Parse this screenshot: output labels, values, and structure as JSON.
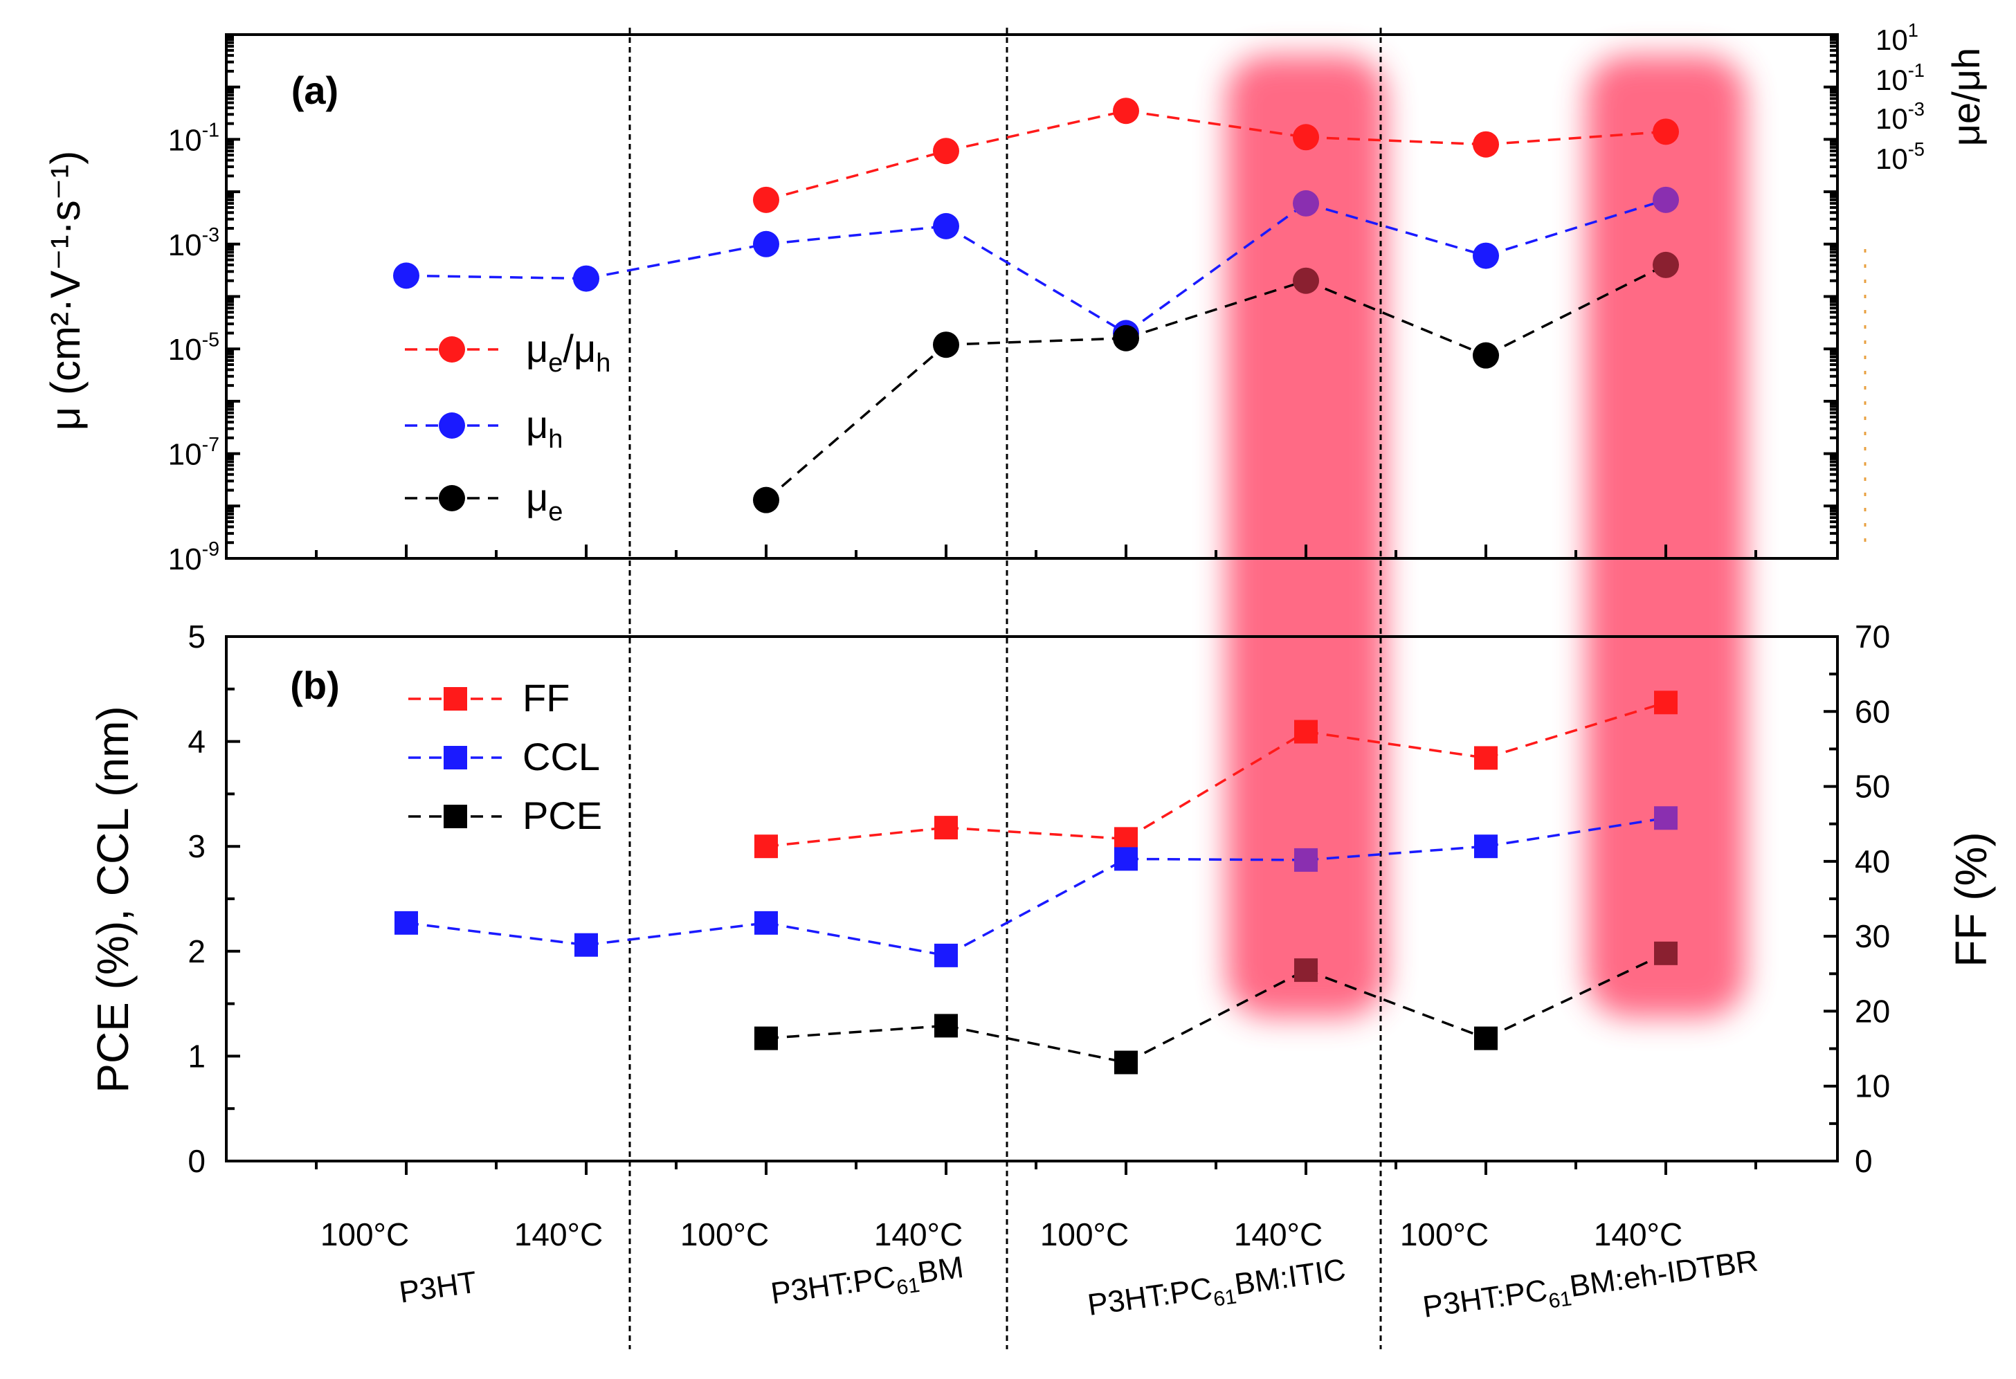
{
  "chart_data": [
    {
      "id": "a",
      "panel_label": "(a)",
      "type": "line",
      "ylabel": "μ (cm²·V⁻¹·s⁻¹)",
      "y2label": "μe/μh",
      "yscale": "log",
      "ylim": [
        1e-09,
        10
      ],
      "y_ticks": [
        {
          "v": 0.1,
          "m": "10",
          "e": "-1"
        },
        {
          "v": 0.001,
          "m": "10",
          "e": "-3"
        },
        {
          "v": 1e-05,
          "m": "10",
          "e": "-5"
        },
        {
          "v": 1e-07,
          "m": "10",
          "e": "-7"
        },
        {
          "v": 1e-09,
          "m": "10",
          "e": "-9"
        }
      ],
      "y2_ticks": [
        {
          "m": "10",
          "e": "1"
        },
        {
          "m": "10",
          "e": "-1"
        },
        {
          "m": "10",
          "e": "-3"
        },
        {
          "m": "10",
          "e": "-5"
        }
      ],
      "series": [
        {
          "name": "μe/μh",
          "lg_main": "μ",
          "lg_sub1": "e",
          "lg_mid": "/μ",
          "lg_sub2": "h",
          "color": "#ff1a1a",
          "marker": "circle",
          "values": [
            null,
            null,
            0.007,
            0.06,
            0.35,
            0.11,
            0.08,
            0.14
          ]
        },
        {
          "name": "μh",
          "lg_main": "μ",
          "lg_sub1": "h",
          "lg_mid": "",
          "lg_sub2": "",
          "color": "#1a1aff",
          "marker": "circle",
          "values": [
            0.00025,
            0.00022,
            0.001,
            0.0022,
            2e-05,
            0.006,
            0.0006,
            0.007
          ]
        },
        {
          "name": "μe",
          "lg_main": "μ",
          "lg_sub1": "e",
          "lg_mid": "",
          "lg_sub2": "",
          "color": "#000000",
          "marker": "circle",
          "values": [
            null,
            null,
            1.3e-08,
            1.2e-05,
            1.6e-05,
            0.0002,
            7.5e-06,
            0.0004
          ]
        }
      ]
    },
    {
      "id": "b",
      "panel_label": "(b)",
      "type": "line",
      "ylabel": "PCE (%), CCL (nm)",
      "y2label": "FF (%)",
      "ylim": [
        0,
        5
      ],
      "y2lim": [
        0,
        70
      ],
      "y_ticks": [
        "0",
        "1",
        "2",
        "3",
        "4",
        "5"
      ],
      "y2_ticks": [
        "0",
        "10",
        "20",
        "30",
        "40",
        "50",
        "60",
        "70"
      ],
      "series": [
        {
          "name": "FF",
          "axis": "right",
          "color": "#ff1a1a",
          "marker": "square",
          "values": [
            null,
            null,
            42,
            44.5,
            43,
            57.3,
            53.8,
            61.2
          ]
        },
        {
          "name": "CCL",
          "axis": "left",
          "color": "#1a1aff",
          "marker": "square",
          "values": [
            2.27,
            2.06,
            2.27,
            1.96,
            2.88,
            2.87,
            3.0,
            3.27
          ]
        },
        {
          "name": "PCE",
          "axis": "left",
          "color": "#000000",
          "marker": "square",
          "values": [
            null,
            null,
            1.17,
            1.29,
            0.94,
            1.82,
            1.17,
            1.98
          ]
        }
      ]
    }
  ],
  "x_ticks": [
    "100°C",
    "140°C",
    "100°C",
    "140°C",
    "100°C",
    "140°C",
    "100°C",
    "140°C"
  ],
  "groups": [
    {
      "pre": "P3HT",
      "sub": "",
      "post": ""
    },
    {
      "pre": "P3HT:PC",
      "sub": "61",
      "post": "BM"
    },
    {
      "pre": "P3HT:PC",
      "sub": "61",
      "post": "BM:ITIC"
    },
    {
      "pre": "P3HT:PC",
      "sub": "61",
      "post": "BM:eh-IDTBR"
    }
  ],
  "highlight_categories": [
    5,
    7
  ],
  "highlight_color": "#ff5a78"
}
